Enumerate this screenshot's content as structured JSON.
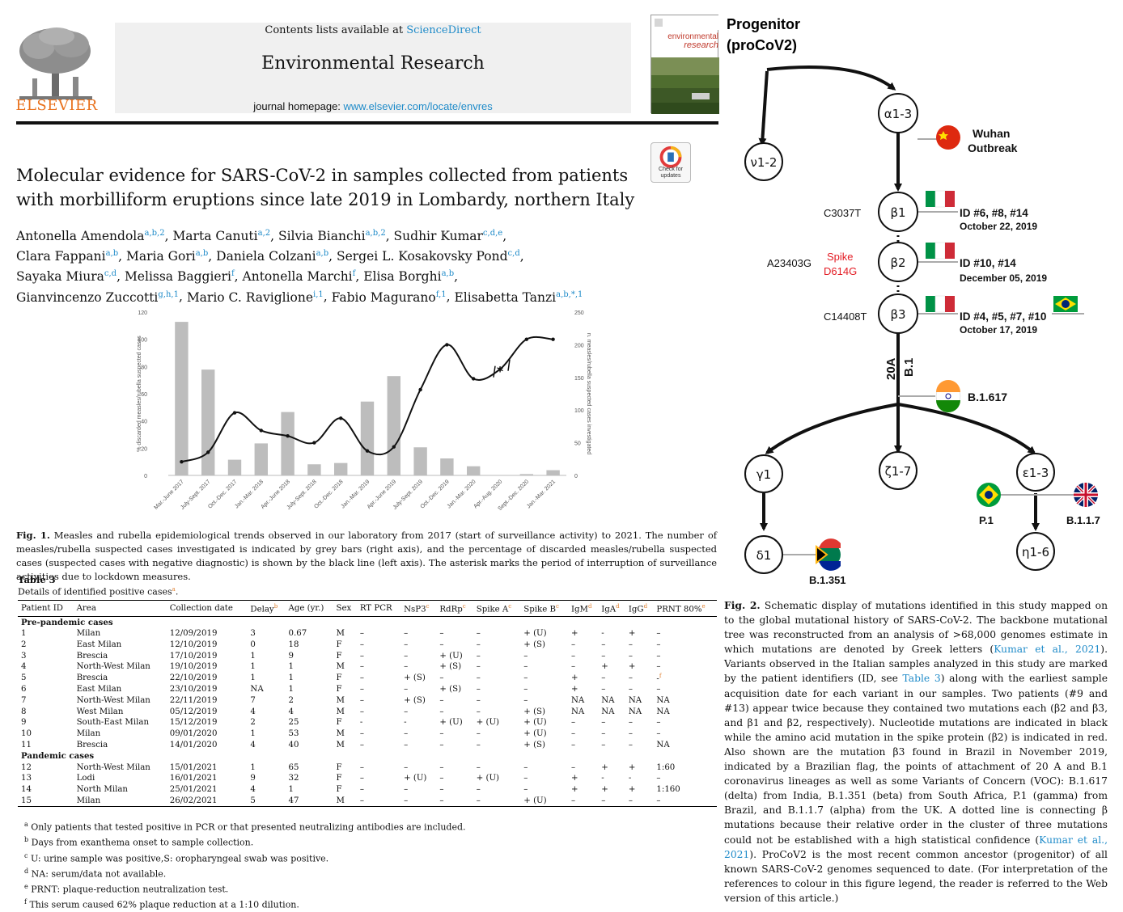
{
  "header": {
    "publisher": "ELSEVIER",
    "contents_prefix": "Contents lists available at ",
    "contents_link": "ScienceDirect",
    "journal_name": "Environmental Research",
    "homepage_prefix": "journal homepage: ",
    "homepage_link": "www.elsevier.com/locate/envres",
    "cover_word1": "environmental",
    "cover_word2": "research",
    "check_badge": "Check for updates"
  },
  "paper": {
    "title": "Molecular evidence for SARS-CoV-2 in samples collected from patients with morbilliform eruptions since late 2019 in Lombardy, northern Italy",
    "authors": [
      {
        "name": "Antonella Amendola",
        "aff": "a,b,2"
      },
      {
        "name": "Marta Canuti",
        "aff": "a,2"
      },
      {
        "name": "Silvia Bianchi",
        "aff": "a,b,2"
      },
      {
        "name": "Sudhir Kumar",
        "aff": "c,d,e"
      },
      {
        "name": "Clara Fappani",
        "aff": "a,b"
      },
      {
        "name": "Maria Gori",
        "aff": "a,b"
      },
      {
        "name": "Daniela Colzani",
        "aff": "a,b"
      },
      {
        "name": "Sergei L. Kosakovsky Pond",
        "aff": "c,d"
      },
      {
        "name": "Sayaka Miura",
        "aff": "c,d"
      },
      {
        "name": "Melissa Baggieri",
        "aff": "f"
      },
      {
        "name": "Antonella Marchi",
        "aff": "f"
      },
      {
        "name": "Elisa Borghi",
        "aff": "a,b"
      },
      {
        "name": "Gianvincenzo Zuccotti",
        "aff": "g,h,1"
      },
      {
        "name": "Mario C. Raviglione",
        "aff": "i,1"
      },
      {
        "name": "Fabio Magurano",
        "aff": "f,1"
      },
      {
        "name": "Elisabetta Tanzi",
        "aff": "a,b,*,1"
      }
    ]
  },
  "fig1": {
    "caption_label": "Fig. 1.",
    "caption": " Measles and rubella epidemiological trends observed in our laboratory from 2017 (start of surveillance activity) to 2021. The number of measles/rubella suspected cases investigated is indicated by grey bars (right axis), and the percentage of discarded measles/rubella suspected cases (suspected cases with negative diagnostic) is shown by the black line (left axis). The asterisk marks the period of interruption of surveillance activities due to lockdown measures.",
    "chart_data": {
      "type": "bar",
      "categories": [
        "Mar.-June 2017",
        "July-Sept. 2017",
        "Oct.-Dec. 2017",
        "Jan.-Mar. 2018",
        "Apr.-June 2018",
        "July-Sept. 2018",
        "Oct.-Dec. 2018",
        "Jan.-Mar. 2019",
        "Apr.-June 2019",
        "July-Sept. 2019",
        "Oct.-Dec. 2019",
        "Jan.-Mar. 2020",
        "Apr.-Aug. 2020",
        "Sept.-Dec. 2020",
        "Jan.-Mar. 2021"
      ],
      "series": [
        {
          "name": "n. measles/rubella suspected cases investigated",
          "axis": "right",
          "values": [
            235,
            162,
            24,
            49,
            97,
            17,
            19,
            113,
            152,
            43,
            26,
            14,
            0,
            2,
            8
          ]
        },
        {
          "name": "% discarded measles/rubella suspected cases",
          "axis": "left",
          "line": true,
          "values": [
            10,
            17,
            46,
            33,
            29,
            24,
            42,
            18,
            21,
            63,
            96,
            71,
            78,
            100,
            100
          ]
        }
      ],
      "ylabel": "% discarded measles/rubella suspected cases",
      "ylabel_right": "n. measles/rubella suspected cases investigated",
      "ylim": [
        0,
        120
      ],
      "ylim_right": [
        0,
        250
      ],
      "yticks": [
        "0",
        "20",
        "40",
        "60",
        "80",
        "100",
        "120"
      ],
      "yticks_right": [
        "0",
        "50",
        "100",
        "150",
        "200",
        "250"
      ],
      "annotation": "*",
      "grid": false,
      "legend": "none"
    }
  },
  "table3": {
    "title": "Table 3",
    "subtitle": "Details of identified positive cases",
    "subtitle_sup": "a",
    "columns": [
      {
        "label": "Patient ID",
        "sup": ""
      },
      {
        "label": "Area",
        "sup": ""
      },
      {
        "label": "Collection date",
        "sup": ""
      },
      {
        "label": "Delay",
        "sup": "b"
      },
      {
        "label": "Age (yr.)",
        "sup": ""
      },
      {
        "label": "Sex",
        "sup": ""
      },
      {
        "label": "RT PCR",
        "sup": ""
      },
      {
        "label": "NsP3",
        "sup": "c"
      },
      {
        "label": "RdRp",
        "sup": "c"
      },
      {
        "label": "Spike A",
        "sup": "c"
      },
      {
        "label": "Spike B",
        "sup": "c"
      },
      {
        "label": "IgM",
        "sup": "d"
      },
      {
        "label": "IgA",
        "sup": "d"
      },
      {
        "label": "IgG",
        "sup": "d"
      },
      {
        "label": "PRNT 80%",
        "sup": "e"
      }
    ],
    "groups": [
      {
        "label": "Pre-pandemic cases",
        "rows": [
          [
            "1",
            "Milan",
            "12/09/2019",
            "3",
            "0.67",
            "M",
            "–",
            "–",
            "–",
            "–",
            "+ (U)",
            "+",
            "-",
            "+",
            "–"
          ],
          [
            "2",
            "East Milan",
            "12/10/2019",
            "0",
            "18",
            "F",
            "–",
            "–",
            "–",
            "–",
            "+ (S)",
            "–",
            "–",
            "–",
            "–"
          ],
          [
            "3",
            "Brescia",
            "17/10/2019",
            "1",
            "9",
            "F",
            "–",
            "–",
            "+ (U)",
            "–",
            "–",
            "–",
            "–",
            "–",
            "–"
          ],
          [
            "4",
            "North-West Milan",
            "19/10/2019",
            "1",
            "1",
            "M",
            "–",
            "–",
            "+ (S)",
            "–",
            "–",
            "–",
            "+",
            "+",
            "–"
          ],
          [
            "5",
            "Brescia",
            "22/10/2019",
            "1",
            "1",
            "F",
            "–",
            "+ (S)",
            "–",
            "–",
            "–",
            "+",
            "–",
            "–",
            "-f"
          ],
          [
            "6",
            "East Milan",
            "23/10/2019",
            "NA",
            "1",
            "F",
            "–",
            "–",
            "+ (S)",
            "–",
            "–",
            "+",
            "–",
            "–",
            "–"
          ],
          [
            "7",
            "North-West Milan",
            "22/11/2019",
            "7",
            "2",
            "M",
            "–",
            "+ (S)",
            "–",
            "–",
            "–",
            "NA",
            "NA",
            "NA",
            "NA"
          ],
          [
            "8",
            "West Milan",
            "05/12/2019",
            "4",
            "4",
            "M",
            "–",
            "–",
            "–",
            "–",
            "+ (S)",
            "NA",
            "NA",
            "NA",
            "NA"
          ],
          [
            "9",
            "South-East Milan",
            "15/12/2019",
            "2",
            "25",
            "F",
            "-",
            "-",
            "+ (U)",
            "+ (U)",
            "+ (U)",
            "–",
            "–",
            "–",
            "–"
          ],
          [
            "10",
            "Milan",
            "09/01/2020",
            "1",
            "53",
            "M",
            "–",
            "–",
            "–",
            "–",
            "+ (U)",
            "–",
            "–",
            "–",
            "–"
          ],
          [
            "11",
            "Brescia",
            "14/01/2020",
            "4",
            "40",
            "M",
            "–",
            "–",
            "–",
            "–",
            "+ (S)",
            "–",
            "–",
            "–",
            "NA"
          ]
        ]
      },
      {
        "label": "Pandemic cases",
        "rows": [
          [
            "12",
            "North-West Milan",
            "15/01/2021",
            "1",
            "65",
            "F",
            "–",
            "–",
            "–",
            "–",
            "–",
            "–",
            "+",
            "+",
            "1:60"
          ],
          [
            "13",
            "Lodi",
            "16/01/2021",
            "9",
            "32",
            "F",
            "–",
            "+ (U)",
            "–",
            "+ (U)",
            "–",
            "+",
            "-",
            "-",
            "–"
          ],
          [
            "14",
            "North Milan",
            "25/01/2021",
            "4",
            "1",
            "F",
            "–",
            "–",
            "–",
            "–",
            "–",
            "+",
            "+",
            "+",
            "1:160"
          ],
          [
            "15",
            "Milan",
            "26/02/2021",
            "5",
            "47",
            "M",
            "–",
            "–",
            "–",
            "–",
            "+ (U)",
            "–",
            "–",
            "–",
            "–"
          ]
        ]
      }
    ],
    "footnotes": [
      {
        "mark": "a",
        "text": "Only patients that tested positive in PCR or that presented neutralizing antibodies are included."
      },
      {
        "mark": "b",
        "text": "Days from exanthema onset to sample collection."
      },
      {
        "mark": "c",
        "text": "U: urine sample was positive,S: oropharyngeal swab was positive."
      },
      {
        "mark": "d",
        "text": "NA: serum/data not available."
      },
      {
        "mark": "e",
        "text": "PRNT: plaque-reduction neutralization test."
      },
      {
        "mark": "f",
        "text": "This serum caused 62% plaque reduction at a 1:10 dilution."
      }
    ]
  },
  "fig2": {
    "progenitor_line1": "Progenitor",
    "progenitor_line2": "(proCoV2)",
    "nodes": {
      "alpha": "α1-3",
      "v": "ν1-2",
      "beta1": "β1",
      "beta2": "β2",
      "beta3": "β3",
      "gamma": "γ1",
      "zeta": "ζ1-7",
      "epsilon": "ε1-3",
      "delta": "δ1",
      "eta": "η1-6"
    },
    "labels": {
      "wuhan1": "Wuhan",
      "wuhan2": "Outbreak",
      "c3037t": "C3037T",
      "a23403g": "A23403G",
      "spike1": "Spike",
      "spike2": "D614G",
      "c14408t": "C14408T",
      "id1": "ID #6, #8, #14",
      "date1": "October 22, 2019",
      "id2": "ID #10, #14",
      "date2": "December 05, 2019",
      "id3": "ID #4, #5, #7, #10",
      "date3": "October 17, 2019",
      "lineage20a": "20A",
      "lineageb1": "B.1",
      "b1617": "B.1.617",
      "p1": "P.1",
      "b117": "B.1.1.7",
      "b1351": "B.1.351"
    },
    "colors": {
      "mutation_red": "#e31b23",
      "flag_italy_green": "#009246",
      "flag_italy_red": "#ce2b37",
      "china_red": "#de2910",
      "brazil_green": "#009c3b",
      "brazil_yellow": "#ffdf00",
      "india_saffron": "#ff9933",
      "india_green": "#138808"
    },
    "caption_label": "Fig. 2.",
    "caption_parts": [
      " Schematic display of mutations identified in this study mapped on to the global mutational history of SARS-CoV-2. The backbone mutational tree was reconstructed from an analysis of >68,000 genomes estimate in which mutations are denoted by Greek letters (",
      "Kumar et al., 2021",
      "). Variants observed in the Italian samples analyzed in this study are marked by the patient identifiers (ID, see ",
      "Table 3",
      ") along with the earliest sample acquisition date for each variant in our samples. Two patients (#9 and #13) appear twice because they contained two mutations each (β2 and β3, and β1 and β2, respectively). Nucleotide mutations are indicated in black while the amino acid mutation in the spike protein (β2) is indicated in red. Also shown are the mutation β3 found in Brazil in November 2019, indicated by a Brazilian flag, the points of attachment of 20 A and B.1 coronavirus lineages as well as some Variants of Concern (VOC): B.1.617 (delta) from India, B.1.351 (beta) from South Africa, P.1 (gamma) from Brazil, and B.1.1.7 (alpha) from the UK. A dotted line is connecting β mutations because their relative order in the cluster of three mutations could not be established with a high statistical confidence (",
      "Kumar et al., 2021",
      "). ProCoV2 is the most recent common ancestor (progenitor) of all known SARS-CoV-2 genomes sequenced to date. (For interpretation of the references to colour in this figure legend, the reader is referred to the Web version of this article.)"
    ]
  }
}
